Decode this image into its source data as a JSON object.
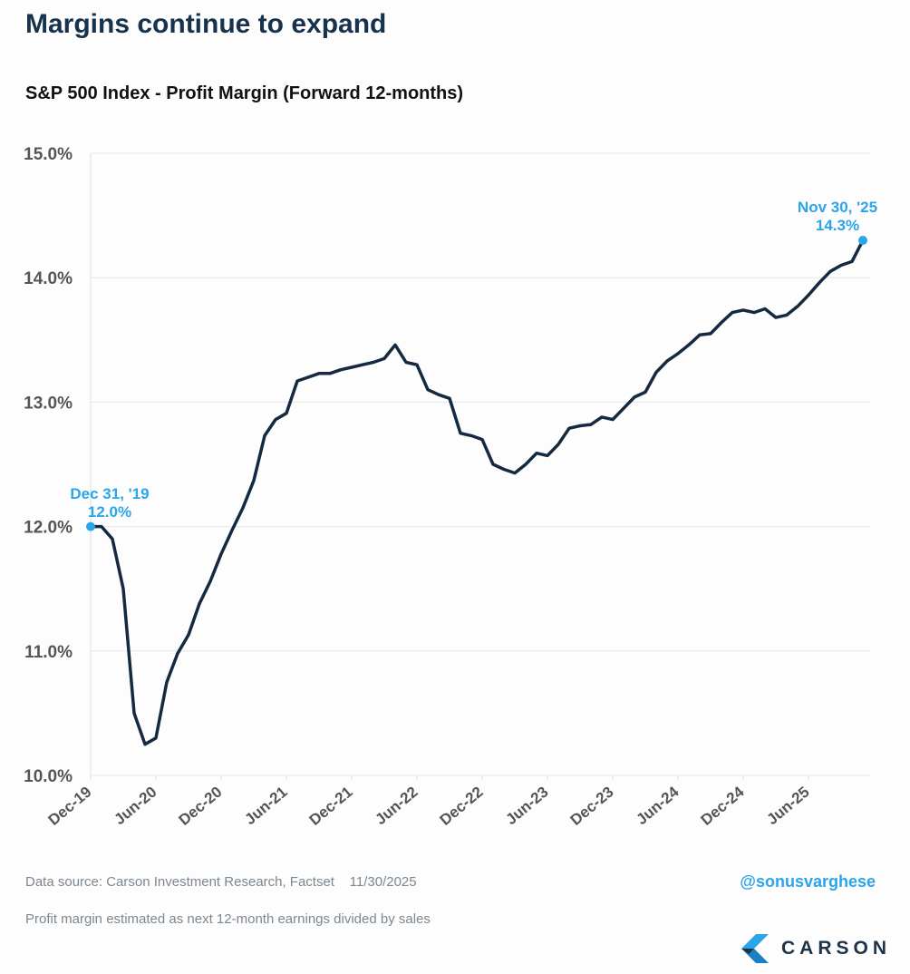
{
  "title": "Margins continue to expand",
  "subtitle": "S&P 500 Index - Profit Margin (Forward 12-months)",
  "footer": {
    "source": "Data source: Carson Investment Research, Factset    11/30/2025",
    "note": "Profit margin estimated as next 12-month earnings divided by sales",
    "handle": "@sonusvarghese",
    "logo_text": "CARSON"
  },
  "colors": {
    "line": "#152a40",
    "accent": "#2aa5ea",
    "grid": "#e6e6e6"
  },
  "chart_data": {
    "type": "line",
    "title": "S&P 500 Index - Profit Margin (Forward 12-months)",
    "xlabel": "",
    "ylabel": "",
    "ylim": [
      10.0,
      15.0
    ],
    "yticks": [
      "10.0%",
      "11.0%",
      "12.0%",
      "13.0%",
      "14.0%",
      "15.0%"
    ],
    "ytick_values": [
      10,
      11,
      12,
      13,
      14,
      15
    ],
    "xticks": [
      "Dec-19",
      "Jun-20",
      "Dec-20",
      "Jun-21",
      "Dec-21",
      "Jun-22",
      "Dec-22",
      "Jun-23",
      "Dec-23",
      "Jun-24",
      "Dec-24",
      "Jun-25"
    ],
    "x_months_from_dec19_range": [
      0,
      71
    ],
    "grid": true,
    "series": [
      {
        "name": "Profit Margin (Forward 12-months)",
        "values": [
          12.0,
          12.0,
          11.9,
          11.5,
          10.5,
          10.25,
          10.3,
          10.75,
          10.98,
          11.13,
          11.38,
          11.56,
          11.78,
          11.97,
          12.15,
          12.37,
          12.73,
          12.86,
          12.91,
          13.17,
          13.2,
          13.23,
          13.23,
          13.26,
          13.28,
          13.3,
          13.32,
          13.35,
          13.46,
          13.32,
          13.3,
          13.1,
          13.06,
          13.03,
          12.75,
          12.73,
          12.7,
          12.5,
          12.46,
          12.43,
          12.5,
          12.59,
          12.57,
          12.66,
          12.79,
          12.81,
          12.82,
          12.88,
          12.86,
          12.95,
          13.04,
          13.08,
          13.24,
          13.33,
          13.39,
          13.46,
          13.54,
          13.55,
          13.64,
          13.72,
          13.74,
          13.72,
          13.75,
          13.68,
          13.7,
          13.77,
          13.86,
          13.96,
          14.05,
          14.1,
          14.13,
          14.3
        ]
      }
    ],
    "annotations": [
      {
        "date": "Dec 31, '19",
        "value": "12.0%"
      },
      {
        "date": "Nov 30, '25",
        "value": "14.3%"
      }
    ]
  }
}
